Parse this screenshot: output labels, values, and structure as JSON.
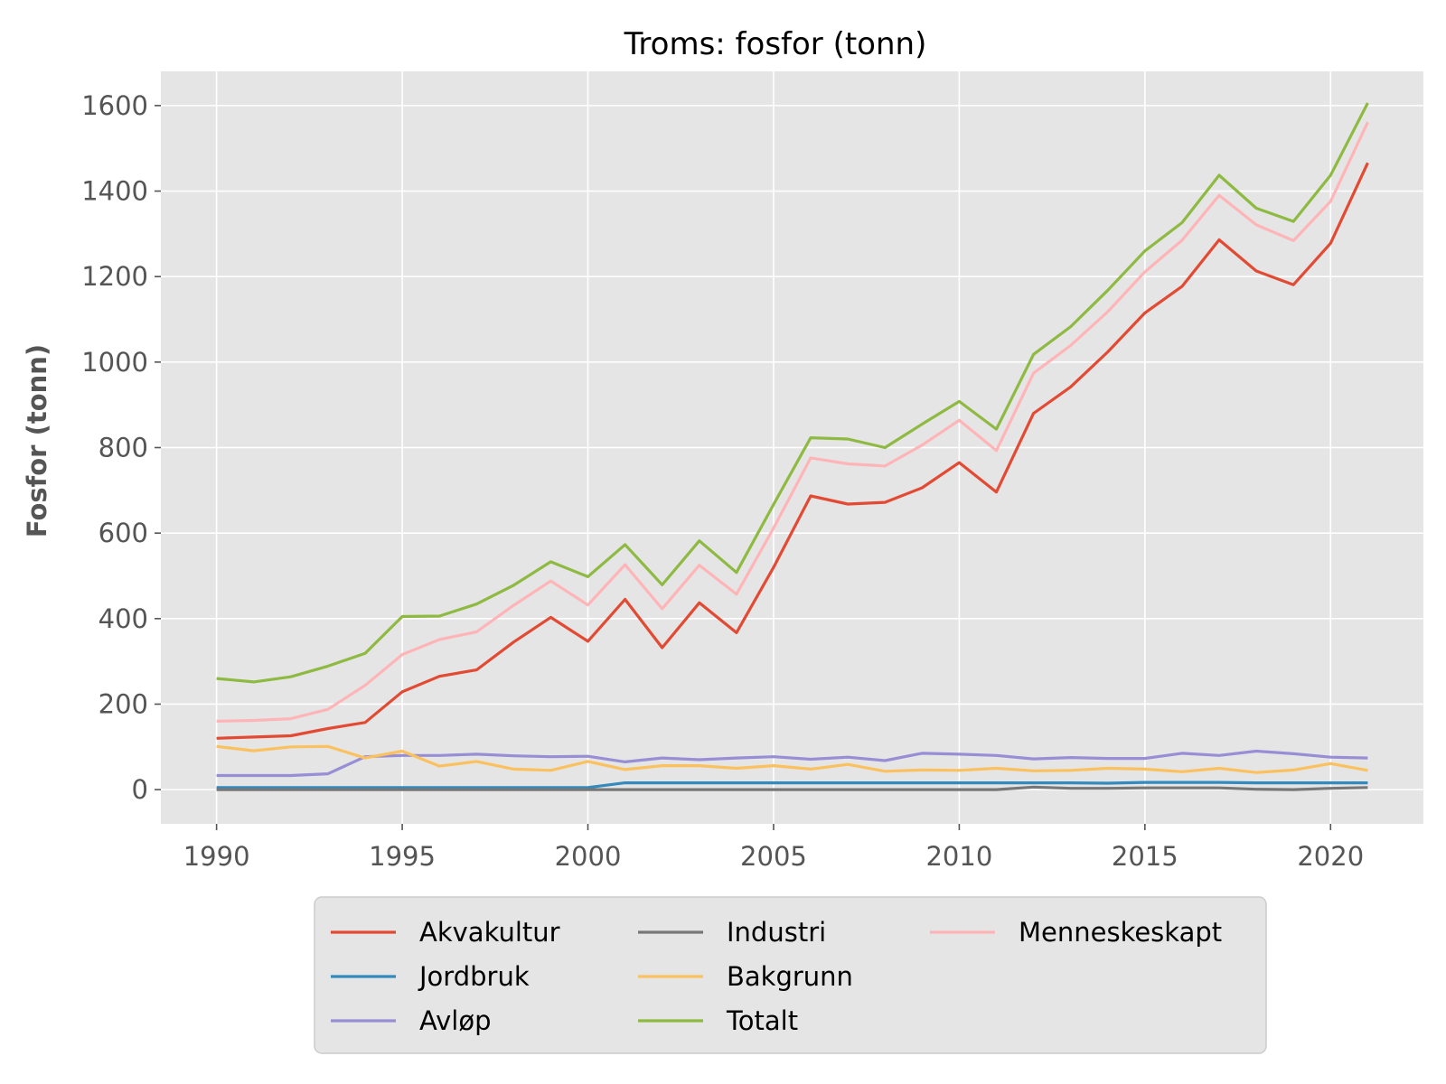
{
  "chart_data": {
    "type": "line",
    "title": "Troms: fosfor (tonn)",
    "xlabel": "",
    "ylabel": "Fosfor (tonn)",
    "xlim": [
      1988.5,
      2022.5
    ],
    "ylim": [
      -80,
      1680
    ],
    "x_ticks": [
      1990,
      1995,
      2000,
      2005,
      2010,
      2015,
      2020
    ],
    "y_ticks": [
      0,
      200,
      400,
      600,
      800,
      1000,
      1200,
      1400,
      1600
    ],
    "grid": true,
    "background": "#E5E5E5",
    "legend_position": "below-center",
    "legend_columns": 3,
    "x": [
      1990,
      1991,
      1992,
      1993,
      1994,
      1995,
      1996,
      1997,
      1998,
      1999,
      2000,
      2001,
      2002,
      2003,
      2004,
      2005,
      2006,
      2007,
      2008,
      2009,
      2010,
      2011,
      2012,
      2013,
      2014,
      2015,
      2016,
      2017,
      2018,
      2019,
      2020,
      2021
    ],
    "series": [
      {
        "name": "Akvakultur",
        "color": "#E24A33",
        "values": [
          120,
          123,
          126,
          143,
          157,
          229,
          265,
          280,
          345,
          403,
          347,
          445,
          332,
          437,
          367,
          520,
          687,
          668,
          672,
          706,
          765,
          696,
          880,
          942,
          1024,
          1115,
          1177,
          1286,
          1213,
          1181,
          1278,
          1466
        ]
      },
      {
        "name": "Jordbruk",
        "color": "#348ABD",
        "values": [
          5,
          5,
          5,
          5,
          5,
          5,
          5,
          5,
          5,
          5,
          5,
          16,
          16,
          16,
          16,
          16,
          16,
          16,
          16,
          16,
          16,
          16,
          16,
          16,
          15,
          17,
          17,
          17,
          16,
          16,
          16,
          16
        ]
      },
      {
        "name": "Avløp",
        "color": "#988ED5",
        "values": [
          33,
          33,
          33,
          37,
          77,
          80,
          80,
          83,
          79,
          77,
          78,
          65,
          74,
          70,
          74,
          77,
          71,
          76,
          68,
          85,
          83,
          80,
          72,
          75,
          73,
          73,
          85,
          80,
          90,
          84,
          76,
          74
        ]
      },
      {
        "name": "Industri",
        "color": "#777777",
        "values": [
          0,
          0,
          0,
          0,
          0,
          0,
          0,
          0,
          0,
          0,
          0,
          0,
          0,
          0,
          0,
          0,
          0,
          0,
          0,
          0,
          0,
          0,
          6,
          3,
          3,
          4,
          4,
          4,
          1,
          0,
          3,
          5
        ]
      },
      {
        "name": "Bakgrunn",
        "color": "#FBC15E",
        "values": [
          101,
          91,
          100,
          101,
          74,
          90,
          55,
          66,
          48,
          45,
          66,
          47,
          56,
          56,
          50,
          56,
          48,
          59,
          43,
          46,
          45,
          50,
          44,
          45,
          50,
          48,
          42,
          50,
          40,
          46,
          61,
          45
        ]
      },
      {
        "name": "Totalt",
        "color": "#8EBA42",
        "values": [
          260,
          252,
          264,
          289,
          319,
          405,
          406,
          434,
          478,
          533,
          498,
          573,
          479,
          582,
          508,
          667,
          823,
          820,
          800,
          855,
          908,
          843,
          1018,
          1083,
          1168,
          1260,
          1326,
          1437,
          1360,
          1329,
          1437,
          1606
        ]
      },
      {
        "name": "Menneskeskapt",
        "color": "#FFB5B8",
        "values": [
          160,
          162,
          166,
          188,
          244,
          316,
          351,
          369,
          431,
          488,
          432,
          526,
          423,
          525,
          457,
          612,
          776,
          762,
          757,
          806,
          864,
          793,
          974,
          1039,
          1118,
          1211,
          1285,
          1390,
          1321,
          1284,
          1376,
          1561
        ]
      }
    ]
  }
}
